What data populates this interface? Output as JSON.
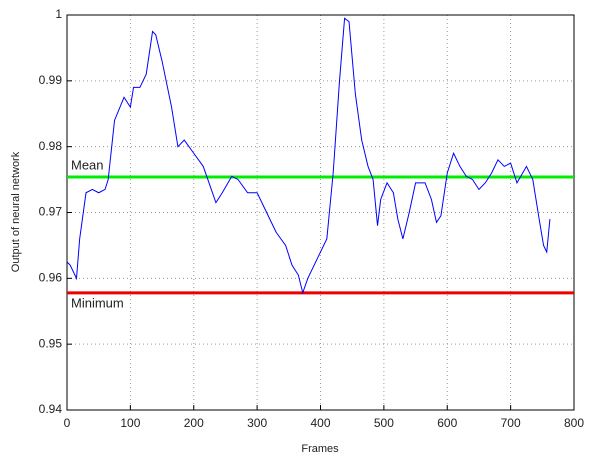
{
  "chart_data": {
    "type": "line",
    "xlabel": "Frames",
    "ylabel": "Output of neural network",
    "xlim": [
      0,
      800
    ],
    "xticks": [
      0,
      100,
      200,
      300,
      400,
      500,
      600,
      700,
      800
    ],
    "ylim": [
      0.94,
      1
    ],
    "yticks": [
      0.94,
      0.95,
      0.96,
      0.97,
      0.98,
      0.99,
      1
    ],
    "grid": true,
    "x": [
      0,
      5,
      15,
      20,
      30,
      40,
      50,
      60,
      65,
      75,
      90,
      100,
      105,
      115,
      125,
      135,
      140,
      150,
      165,
      175,
      185,
      200,
      215,
      235,
      245,
      260,
      270,
      285,
      300,
      315,
      330,
      345,
      355,
      365,
      372,
      380,
      395,
      410,
      420,
      430,
      438,
      445,
      455,
      465,
      475,
      483,
      490,
      495,
      505,
      515,
      522,
      530,
      540,
      550,
      565,
      575,
      583,
      590,
      600,
      610,
      620,
      630,
      640,
      650,
      660,
      670,
      680,
      690,
      700,
      710,
      725,
      735,
      745,
      752,
      757,
      762
    ],
    "series": [
      {
        "color": "#0000ff",
        "values": [
          0.9625,
          0.962,
          0.96,
          0.966,
          0.973,
          0.9735,
          0.973,
          0.9735,
          0.975,
          0.984,
          0.9875,
          0.986,
          0.989,
          0.989,
          0.991,
          0.9975,
          0.997,
          0.993,
          0.986,
          0.98,
          0.981,
          0.979,
          0.977,
          0.9715,
          0.973,
          0.9755,
          0.975,
          0.973,
          0.973,
          0.97,
          0.967,
          0.965,
          0.962,
          0.9605,
          0.9578,
          0.96,
          0.963,
          0.966,
          0.976,
          0.99,
          0.9995,
          0.999,
          0.988,
          0.981,
          0.977,
          0.975,
          0.968,
          0.972,
          0.9745,
          0.973,
          0.969,
          0.966,
          0.97,
          0.9745,
          0.9745,
          0.972,
          0.9685,
          0.9695,
          0.976,
          0.979,
          0.977,
          0.9755,
          0.975,
          0.9735,
          0.9745,
          0.976,
          0.978,
          0.977,
          0.9775,
          0.9745,
          0.977,
          0.975,
          0.969,
          0.965,
          0.964,
          0.969
        ]
      }
    ],
    "hlines": [
      {
        "name": "Mean",
        "value": 0.9754,
        "color": "#00ee00"
      },
      {
        "name": "Minimum",
        "value": 0.9578,
        "color": "#ee0000"
      }
    ]
  }
}
